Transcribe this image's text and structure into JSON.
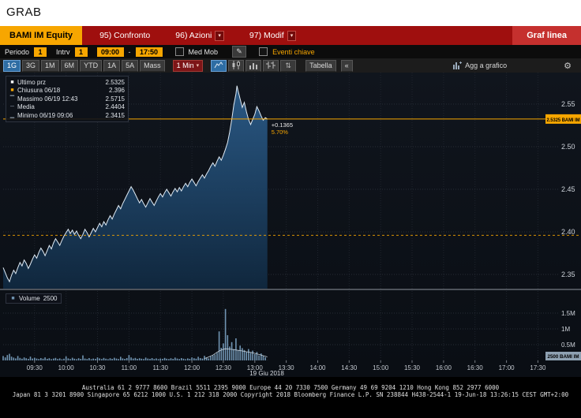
{
  "window": {
    "title": "GRAB"
  },
  "colors": {
    "amber": "#f7a600",
    "red_bar": "#9f0f0e",
    "view_red": "#c5302e",
    "line": "#dfeaf4",
    "area_top": "#2b5c8a",
    "area_bottom": "#10283f",
    "volume_bar": "#7094b2",
    "active_tab": "#2e6da4"
  },
  "icons": {
    "dropdown_arrow": "▾",
    "pencil": "✎",
    "gear": "⚙",
    "updown": "⇅"
  },
  "toolbar": {
    "ticker": "BAMI IM Equity",
    "menus": [
      {
        "label": "95) Confronto"
      },
      {
        "label": "96) Azioni"
      },
      {
        "label": "97) Modif"
      }
    ],
    "view_label": "Graf linea"
  },
  "params": {
    "periodo_label": "Periodo",
    "periodo_value": "1",
    "intrv_label": "Intrv",
    "intrv_value": "1",
    "time_from": "09:00",
    "dash": "-",
    "time_to": "17:50",
    "med_mob_label": "Med Mob",
    "eventi_label": "Eventi chiave"
  },
  "tabs": {
    "ranges": [
      "1G",
      "3G",
      "1M",
      "6M",
      "YTD",
      "1A",
      "5A"
    ],
    "active_range": "1G",
    "mass_label": "Mass",
    "interval_label": "1 Min",
    "tabella_label": "Tabella",
    "collapse_label": "«",
    "agg_label": "Agg a grafico"
  },
  "legend": {
    "items": [
      {
        "marker": "■",
        "marker_color": "#ffffff",
        "label": "Ultimo prz",
        "value": "2.5325"
      },
      {
        "marker": "■",
        "marker_color": "#f7a600",
        "label": "Chiusura 06/18",
        "value": "2.396"
      },
      {
        "marker": "▔",
        "marker_color": "#9aa8b6",
        "label": "Massimo 06/19 12:43",
        "value": "2.5715"
      },
      {
        "marker": "─",
        "marker_color": "#9aa8b6",
        "label": "Media",
        "value": "2.4404"
      },
      {
        "marker": "▁",
        "marker_color": "#9aa8b6",
        "label": "Minimo 06/19 09:06",
        "value": "2.3415"
      }
    ]
  },
  "volume_legend": {
    "marker": "■",
    "marker_color": "#7094b2",
    "label": "Volume",
    "value": "2500"
  },
  "annotation": {
    "change": "+0.1365",
    "pct": "5.70%"
  },
  "axis": {
    "last_price_label": "2.5325 BAMI IM",
    "volume_last_label": "2500 BAMI IM"
  },
  "date_label": "19 Giu 2018",
  "footer": {
    "line1": "Australia 61 2 9777 8600 Brazil 5511 2395 9000 Europe 44 20 7330 7500 Germany 49 69 9204 1210 Hong Kong 852 2977 6000",
    "line2": "Japan 81 3 3201 8900   Singapore 65 6212 1000   U.S. 1 212 318 2000   Copyright 2018 Bloomberg Finance L.P. SN 238844 H438-2544-1 19-Jun-18 13:26:15 CEST GMT+2:00"
  },
  "chart_data": {
    "type": "area",
    "title": "BAMI IM Equity 1 Min — Graf linea",
    "x_unit": "minutes from 09:00",
    "x_range": [
      0,
      530
    ],
    "session": {
      "start": "09:00",
      "end": "17:50"
    },
    "ylim": [
      2.3333,
      2.587
    ],
    "y_ticks": [
      2.35,
      2.4,
      2.45,
      2.5,
      2.55
    ],
    "vlim": [
      0,
      2200000
    ],
    "volume_ticks": [
      {
        "v": 500000,
        "label": "0.5M"
      },
      {
        "v": 1000000,
        "label": "1M"
      },
      {
        "v": 1500000,
        "label": "1.5M"
      }
    ],
    "x_ticks": [
      {
        "t": 30,
        "label": "09:30"
      },
      {
        "t": 60,
        "label": "10:00"
      },
      {
        "t": 90,
        "label": "10:30"
      },
      {
        "t": 120,
        "label": "11:00"
      },
      {
        "t": 150,
        "label": "11:30"
      },
      {
        "t": 180,
        "label": "12:00"
      },
      {
        "t": 210,
        "label": "12:30"
      },
      {
        "t": 240,
        "label": "13:00"
      },
      {
        "t": 270,
        "label": "13:30"
      },
      {
        "t": 300,
        "label": "14:00"
      },
      {
        "t": 330,
        "label": "14:30"
      },
      {
        "t": 360,
        "label": "15:00"
      },
      {
        "t": 390,
        "label": "15:30"
      },
      {
        "t": 420,
        "label": "16:00"
      },
      {
        "t": 450,
        "label": "16:30"
      },
      {
        "t": 480,
        "label": "17:00"
      },
      {
        "t": 510,
        "label": "17:30"
      }
    ],
    "last_price": 2.5325,
    "prev_close": 2.396,
    "high": 2.5715,
    "low": 2.3415,
    "mean": 2.4404,
    "last_volume": 2500,
    "price": {
      "points": [
        [
          0,
          2.358
        ],
        [
          2,
          2.352
        ],
        [
          4,
          2.346
        ],
        [
          6,
          2.3415
        ],
        [
          8,
          2.349
        ],
        [
          10,
          2.355
        ],
        [
          12,
          2.351
        ],
        [
          14,
          2.358
        ],
        [
          16,
          2.364
        ],
        [
          18,
          2.36
        ],
        [
          20,
          2.367
        ],
        [
          22,
          2.363
        ],
        [
          24,
          2.357
        ],
        [
          26,
          2.362
        ],
        [
          28,
          2.368
        ],
        [
          30,
          2.373
        ],
        [
          32,
          2.369
        ],
        [
          34,
          2.376
        ],
        [
          36,
          2.381
        ],
        [
          38,
          2.377
        ],
        [
          40,
          2.372
        ],
        [
          42,
          2.378
        ],
        [
          44,
          2.384
        ],
        [
          46,
          2.38
        ],
        [
          48,
          2.387
        ],
        [
          50,
          2.392
        ],
        [
          52,
          2.388
        ],
        [
          54,
          2.384
        ],
        [
          56,
          2.39
        ],
        [
          58,
          2.395
        ],
        [
          60,
          2.399
        ],
        [
          62,
          2.403
        ],
        [
          64,
          2.398
        ],
        [
          66,
          2.402
        ],
        [
          68,
          2.397
        ],
        [
          70,
          2.401
        ],
        [
          72,
          2.396
        ],
        [
          74,
          2.392
        ],
        [
          76,
          2.397
        ],
        [
          78,
          2.403
        ],
        [
          80,
          2.399
        ],
        [
          82,
          2.394
        ],
        [
          84,
          2.399
        ],
        [
          86,
          2.404
        ],
        [
          88,
          2.4
        ],
        [
          90,
          2.405
        ],
        [
          92,
          2.41
        ],
        [
          94,
          2.406
        ],
        [
          96,
          2.412
        ],
        [
          98,
          2.408
        ],
        [
          100,
          2.414
        ],
        [
          102,
          2.419
        ],
        [
          104,
          2.415
        ],
        [
          106,
          2.421
        ],
        [
          108,
          2.426
        ],
        [
          110,
          2.431
        ],
        [
          112,
          2.427
        ],
        [
          114,
          2.433
        ],
        [
          116,
          2.438
        ],
        [
          118,
          2.443
        ],
        [
          120,
          2.448
        ],
        [
          122,
          2.453
        ],
        [
          124,
          2.449
        ],
        [
          126,
          2.444
        ],
        [
          128,
          2.439
        ],
        [
          130,
          2.434
        ],
        [
          132,
          2.438
        ],
        [
          134,
          2.433
        ],
        [
          136,
          2.429
        ],
        [
          138,
          2.434
        ],
        [
          140,
          2.439
        ],
        [
          142,
          2.435
        ],
        [
          144,
          2.431
        ],
        [
          146,
          2.436
        ],
        [
          148,
          2.441
        ],
        [
          150,
          2.445
        ],
        [
          152,
          2.441
        ],
        [
          154,
          2.446
        ],
        [
          156,
          2.45
        ],
        [
          158,
          2.446
        ],
        [
          160,
          2.442
        ],
        [
          162,
          2.447
        ],
        [
          164,
          2.451
        ],
        [
          166,
          2.447
        ],
        [
          168,
          2.452
        ],
        [
          170,
          2.448
        ],
        [
          172,
          2.453
        ],
        [
          174,
          2.457
        ],
        [
          176,
          2.453
        ],
        [
          178,
          2.458
        ],
        [
          180,
          2.462
        ],
        [
          182,
          2.458
        ],
        [
          184,
          2.454
        ],
        [
          186,
          2.459
        ],
        [
          188,
          2.463
        ],
        [
          190,
          2.467
        ],
        [
          192,
          2.463
        ],
        [
          194,
          2.468
        ],
        [
          196,
          2.472
        ],
        [
          198,
          2.477
        ],
        [
          200,
          2.481
        ],
        [
          202,
          2.477
        ],
        [
          204,
          2.483
        ],
        [
          206,
          2.488
        ],
        [
          208,
          2.484
        ],
        [
          210,
          2.49
        ],
        [
          212,
          2.497
        ],
        [
          214,
          2.505
        ],
        [
          216,
          2.517
        ],
        [
          218,
          2.532
        ],
        [
          220,
          2.549
        ],
        [
          222,
          2.562
        ],
        [
          223,
          2.5715
        ],
        [
          224,
          2.566
        ],
        [
          226,
          2.556
        ],
        [
          228,
          2.546
        ],
        [
          230,
          2.552
        ],
        [
          232,
          2.541
        ],
        [
          234,
          2.532
        ],
        [
          236,
          2.526
        ],
        [
          238,
          2.532
        ],
        [
          240,
          2.538
        ],
        [
          242,
          2.547
        ],
        [
          244,
          2.542
        ],
        [
          246,
          2.536
        ],
        [
          248,
          2.531
        ],
        [
          250,
          2.534
        ],
        [
          252,
          2.5325
        ]
      ]
    },
    "volume": {
      "points": [
        [
          0,
          140000
        ],
        [
          2,
          95000
        ],
        [
          4,
          170000
        ],
        [
          6,
          210000
        ],
        [
          8,
          120000
        ],
        [
          10,
          90000
        ],
        [
          12,
          65000
        ],
        [
          14,
          140000
        ],
        [
          16,
          80000
        ],
        [
          18,
          55000
        ],
        [
          20,
          95000
        ],
        [
          22,
          70000
        ],
        [
          24,
          50000
        ],
        [
          26,
          120000
        ],
        [
          28,
          60000
        ],
        [
          30,
          85000
        ],
        [
          32,
          60000
        ],
        [
          34,
          45000
        ],
        [
          36,
          75000
        ],
        [
          38,
          55000
        ],
        [
          40,
          95000
        ],
        [
          42,
          50000
        ],
        [
          44,
          70000
        ],
        [
          46,
          40000
        ],
        [
          48,
          60000
        ],
        [
          50,
          80000
        ],
        [
          52,
          45000
        ],
        [
          54,
          65000
        ],
        [
          56,
          35000
        ],
        [
          58,
          55000
        ],
        [
          60,
          130000
        ],
        [
          62,
          65000
        ],
        [
          64,
          45000
        ],
        [
          66,
          85000
        ],
        [
          68,
          55000
        ],
        [
          70,
          40000
        ],
        [
          72,
          70000
        ],
        [
          74,
          50000
        ],
        [
          76,
          160000
        ],
        [
          78,
          60000
        ],
        [
          80,
          45000
        ],
        [
          82,
          75000
        ],
        [
          84,
          40000
        ],
        [
          86,
          60000
        ],
        [
          88,
          50000
        ],
        [
          90,
          95000
        ],
        [
          92,
          65000
        ],
        [
          94,
          45000
        ],
        [
          96,
          80000
        ],
        [
          98,
          55000
        ],
        [
          100,
          40000
        ],
        [
          102,
          70000
        ],
        [
          104,
          50000
        ],
        [
          106,
          85000
        ],
        [
          108,
          60000
        ],
        [
          110,
          45000
        ],
        [
          112,
          115000
        ],
        [
          114,
          65000
        ],
        [
          116,
          50000
        ],
        [
          118,
          75000
        ],
        [
          120,
          170000
        ],
        [
          122,
          95000
        ],
        [
          124,
          60000
        ],
        [
          126,
          80000
        ],
        [
          128,
          50000
        ],
        [
          130,
          70000
        ],
        [
          132,
          55000
        ],
        [
          134,
          45000
        ],
        [
          136,
          90000
        ],
        [
          138,
          60000
        ],
        [
          140,
          50000
        ],
        [
          142,
          75000
        ],
        [
          144,
          45000
        ],
        [
          146,
          65000
        ],
        [
          148,
          40000
        ],
        [
          150,
          60000
        ],
        [
          152,
          50000
        ],
        [
          154,
          80000
        ],
        [
          156,
          55000
        ],
        [
          158,
          45000
        ],
        [
          160,
          70000
        ],
        [
          162,
          50000
        ],
        [
          164,
          90000
        ],
        [
          166,
          60000
        ],
        [
          168,
          45000
        ],
        [
          170,
          75000
        ],
        [
          172,
          55000
        ],
        [
          174,
          40000
        ],
        [
          176,
          65000
        ],
        [
          178,
          50000
        ],
        [
          180,
          95000
        ],
        [
          182,
          70000
        ],
        [
          184,
          55000
        ],
        [
          186,
          115000
        ],
        [
          188,
          75000
        ],
        [
          190,
          60000
        ],
        [
          192,
          145000
        ],
        [
          194,
          90000
        ],
        [
          196,
          65000
        ],
        [
          198,
          125000
        ],
        [
          200,
          160000
        ],
        [
          202,
          190000
        ],
        [
          204,
          240000
        ],
        [
          206,
          920000
        ],
        [
          208,
          400000
        ],
        [
          210,
          540000
        ],
        [
          212,
          1630000
        ],
        [
          214,
          800000
        ],
        [
          216,
          440000
        ],
        [
          218,
          580000
        ],
        [
          220,
          360000
        ],
        [
          222,
          700000
        ],
        [
          224,
          310000
        ],
        [
          226,
          470000
        ],
        [
          228,
          390000
        ],
        [
          230,
          330000
        ],
        [
          232,
          270000
        ],
        [
          234,
          360000
        ],
        [
          236,
          240000
        ],
        [
          238,
          310000
        ],
        [
          240,
          200000
        ],
        [
          242,
          270000
        ],
        [
          244,
          160000
        ],
        [
          246,
          220000
        ],
        [
          248,
          140000
        ],
        [
          250,
          100000
        ],
        [
          252,
          2500
        ]
      ]
    },
    "volume_envelope": [
      [
        192,
        60000
      ],
      [
        196,
        110000
      ],
      [
        200,
        170000
      ],
      [
        204,
        260000
      ],
      [
        208,
        330000
      ],
      [
        212,
        370000
      ],
      [
        216,
        360000
      ],
      [
        220,
        340000
      ],
      [
        224,
        320000
      ],
      [
        228,
        300000
      ],
      [
        232,
        276000
      ],
      [
        236,
        254000
      ],
      [
        240,
        226000
      ],
      [
        244,
        190000
      ],
      [
        248,
        150000
      ],
      [
        252,
        112000
      ]
    ]
  }
}
